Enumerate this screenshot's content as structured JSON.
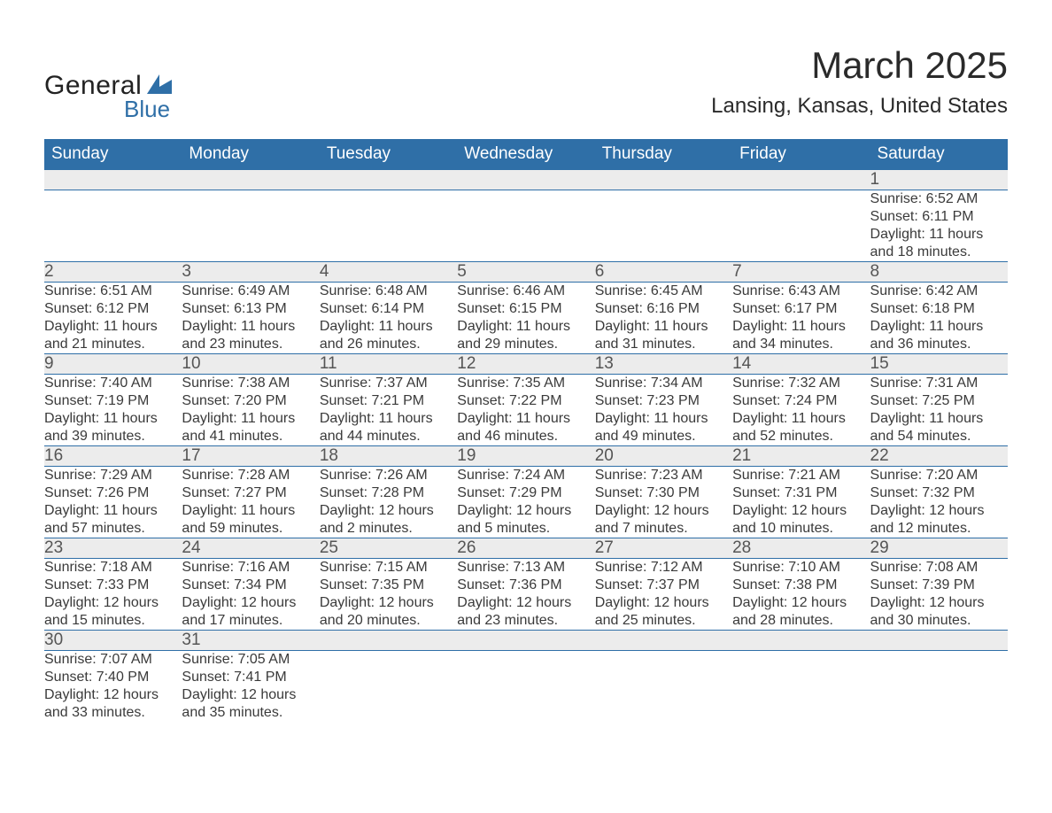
{
  "logo": {
    "text_primary": "General",
    "text_secondary": "Blue",
    "icon_color": "#2f6fa7"
  },
  "header": {
    "month_title": "March 2025",
    "location": "Lansing, Kansas, United States"
  },
  "styling": {
    "header_bg": "#2f6fa7",
    "header_fg": "#ffffff",
    "daynum_bg": "#ececec",
    "body_fg": "#3a3a3a",
    "row_border": "#2f6fa7",
    "page_bg": "#ffffff",
    "title_fontsize": 42,
    "location_fontsize": 24,
    "weekday_fontsize": 19,
    "daynum_fontsize": 19,
    "cell_fontsize": 16
  },
  "weekdays": [
    "Sunday",
    "Monday",
    "Tuesday",
    "Wednesday",
    "Thursday",
    "Friday",
    "Saturday"
  ],
  "weeks": [
    [
      null,
      null,
      null,
      null,
      null,
      null,
      {
        "n": "1",
        "sr": "Sunrise: 6:52 AM",
        "ss": "Sunset: 6:11 PM",
        "d1": "Daylight: 11 hours",
        "d2": "and 18 minutes."
      }
    ],
    [
      {
        "n": "2",
        "sr": "Sunrise: 6:51 AM",
        "ss": "Sunset: 6:12 PM",
        "d1": "Daylight: 11 hours",
        "d2": "and 21 minutes."
      },
      {
        "n": "3",
        "sr": "Sunrise: 6:49 AM",
        "ss": "Sunset: 6:13 PM",
        "d1": "Daylight: 11 hours",
        "d2": "and 23 minutes."
      },
      {
        "n": "4",
        "sr": "Sunrise: 6:48 AM",
        "ss": "Sunset: 6:14 PM",
        "d1": "Daylight: 11 hours",
        "d2": "and 26 minutes."
      },
      {
        "n": "5",
        "sr": "Sunrise: 6:46 AM",
        "ss": "Sunset: 6:15 PM",
        "d1": "Daylight: 11 hours",
        "d2": "and 29 minutes."
      },
      {
        "n": "6",
        "sr": "Sunrise: 6:45 AM",
        "ss": "Sunset: 6:16 PM",
        "d1": "Daylight: 11 hours",
        "d2": "and 31 minutes."
      },
      {
        "n": "7",
        "sr": "Sunrise: 6:43 AM",
        "ss": "Sunset: 6:17 PM",
        "d1": "Daylight: 11 hours",
        "d2": "and 34 minutes."
      },
      {
        "n": "8",
        "sr": "Sunrise: 6:42 AM",
        "ss": "Sunset: 6:18 PM",
        "d1": "Daylight: 11 hours",
        "d2": "and 36 minutes."
      }
    ],
    [
      {
        "n": "9",
        "sr": "Sunrise: 7:40 AM",
        "ss": "Sunset: 7:19 PM",
        "d1": "Daylight: 11 hours",
        "d2": "and 39 minutes."
      },
      {
        "n": "10",
        "sr": "Sunrise: 7:38 AM",
        "ss": "Sunset: 7:20 PM",
        "d1": "Daylight: 11 hours",
        "d2": "and 41 minutes."
      },
      {
        "n": "11",
        "sr": "Sunrise: 7:37 AM",
        "ss": "Sunset: 7:21 PM",
        "d1": "Daylight: 11 hours",
        "d2": "and 44 minutes."
      },
      {
        "n": "12",
        "sr": "Sunrise: 7:35 AM",
        "ss": "Sunset: 7:22 PM",
        "d1": "Daylight: 11 hours",
        "d2": "and 46 minutes."
      },
      {
        "n": "13",
        "sr": "Sunrise: 7:34 AM",
        "ss": "Sunset: 7:23 PM",
        "d1": "Daylight: 11 hours",
        "d2": "and 49 minutes."
      },
      {
        "n": "14",
        "sr": "Sunrise: 7:32 AM",
        "ss": "Sunset: 7:24 PM",
        "d1": "Daylight: 11 hours",
        "d2": "and 52 minutes."
      },
      {
        "n": "15",
        "sr": "Sunrise: 7:31 AM",
        "ss": "Sunset: 7:25 PM",
        "d1": "Daylight: 11 hours",
        "d2": "and 54 minutes."
      }
    ],
    [
      {
        "n": "16",
        "sr": "Sunrise: 7:29 AM",
        "ss": "Sunset: 7:26 PM",
        "d1": "Daylight: 11 hours",
        "d2": "and 57 minutes."
      },
      {
        "n": "17",
        "sr": "Sunrise: 7:28 AM",
        "ss": "Sunset: 7:27 PM",
        "d1": "Daylight: 11 hours",
        "d2": "and 59 minutes."
      },
      {
        "n": "18",
        "sr": "Sunrise: 7:26 AM",
        "ss": "Sunset: 7:28 PM",
        "d1": "Daylight: 12 hours",
        "d2": "and 2 minutes."
      },
      {
        "n": "19",
        "sr": "Sunrise: 7:24 AM",
        "ss": "Sunset: 7:29 PM",
        "d1": "Daylight: 12 hours",
        "d2": "and 5 minutes."
      },
      {
        "n": "20",
        "sr": "Sunrise: 7:23 AM",
        "ss": "Sunset: 7:30 PM",
        "d1": "Daylight: 12 hours",
        "d2": "and 7 minutes."
      },
      {
        "n": "21",
        "sr": "Sunrise: 7:21 AM",
        "ss": "Sunset: 7:31 PM",
        "d1": "Daylight: 12 hours",
        "d2": "and 10 minutes."
      },
      {
        "n": "22",
        "sr": "Sunrise: 7:20 AM",
        "ss": "Sunset: 7:32 PM",
        "d1": "Daylight: 12 hours",
        "d2": "and 12 minutes."
      }
    ],
    [
      {
        "n": "23",
        "sr": "Sunrise: 7:18 AM",
        "ss": "Sunset: 7:33 PM",
        "d1": "Daylight: 12 hours",
        "d2": "and 15 minutes."
      },
      {
        "n": "24",
        "sr": "Sunrise: 7:16 AM",
        "ss": "Sunset: 7:34 PM",
        "d1": "Daylight: 12 hours",
        "d2": "and 17 minutes."
      },
      {
        "n": "25",
        "sr": "Sunrise: 7:15 AM",
        "ss": "Sunset: 7:35 PM",
        "d1": "Daylight: 12 hours",
        "d2": "and 20 minutes."
      },
      {
        "n": "26",
        "sr": "Sunrise: 7:13 AM",
        "ss": "Sunset: 7:36 PM",
        "d1": "Daylight: 12 hours",
        "d2": "and 23 minutes."
      },
      {
        "n": "27",
        "sr": "Sunrise: 7:12 AM",
        "ss": "Sunset: 7:37 PM",
        "d1": "Daylight: 12 hours",
        "d2": "and 25 minutes."
      },
      {
        "n": "28",
        "sr": "Sunrise: 7:10 AM",
        "ss": "Sunset: 7:38 PM",
        "d1": "Daylight: 12 hours",
        "d2": "and 28 minutes."
      },
      {
        "n": "29",
        "sr": "Sunrise: 7:08 AM",
        "ss": "Sunset: 7:39 PM",
        "d1": "Daylight: 12 hours",
        "d2": "and 30 minutes."
      }
    ],
    [
      {
        "n": "30",
        "sr": "Sunrise: 7:07 AM",
        "ss": "Sunset: 7:40 PM",
        "d1": "Daylight: 12 hours",
        "d2": "and 33 minutes."
      },
      {
        "n": "31",
        "sr": "Sunrise: 7:05 AM",
        "ss": "Sunset: 7:41 PM",
        "d1": "Daylight: 12 hours",
        "d2": "and 35 minutes."
      },
      null,
      null,
      null,
      null,
      null
    ]
  ]
}
